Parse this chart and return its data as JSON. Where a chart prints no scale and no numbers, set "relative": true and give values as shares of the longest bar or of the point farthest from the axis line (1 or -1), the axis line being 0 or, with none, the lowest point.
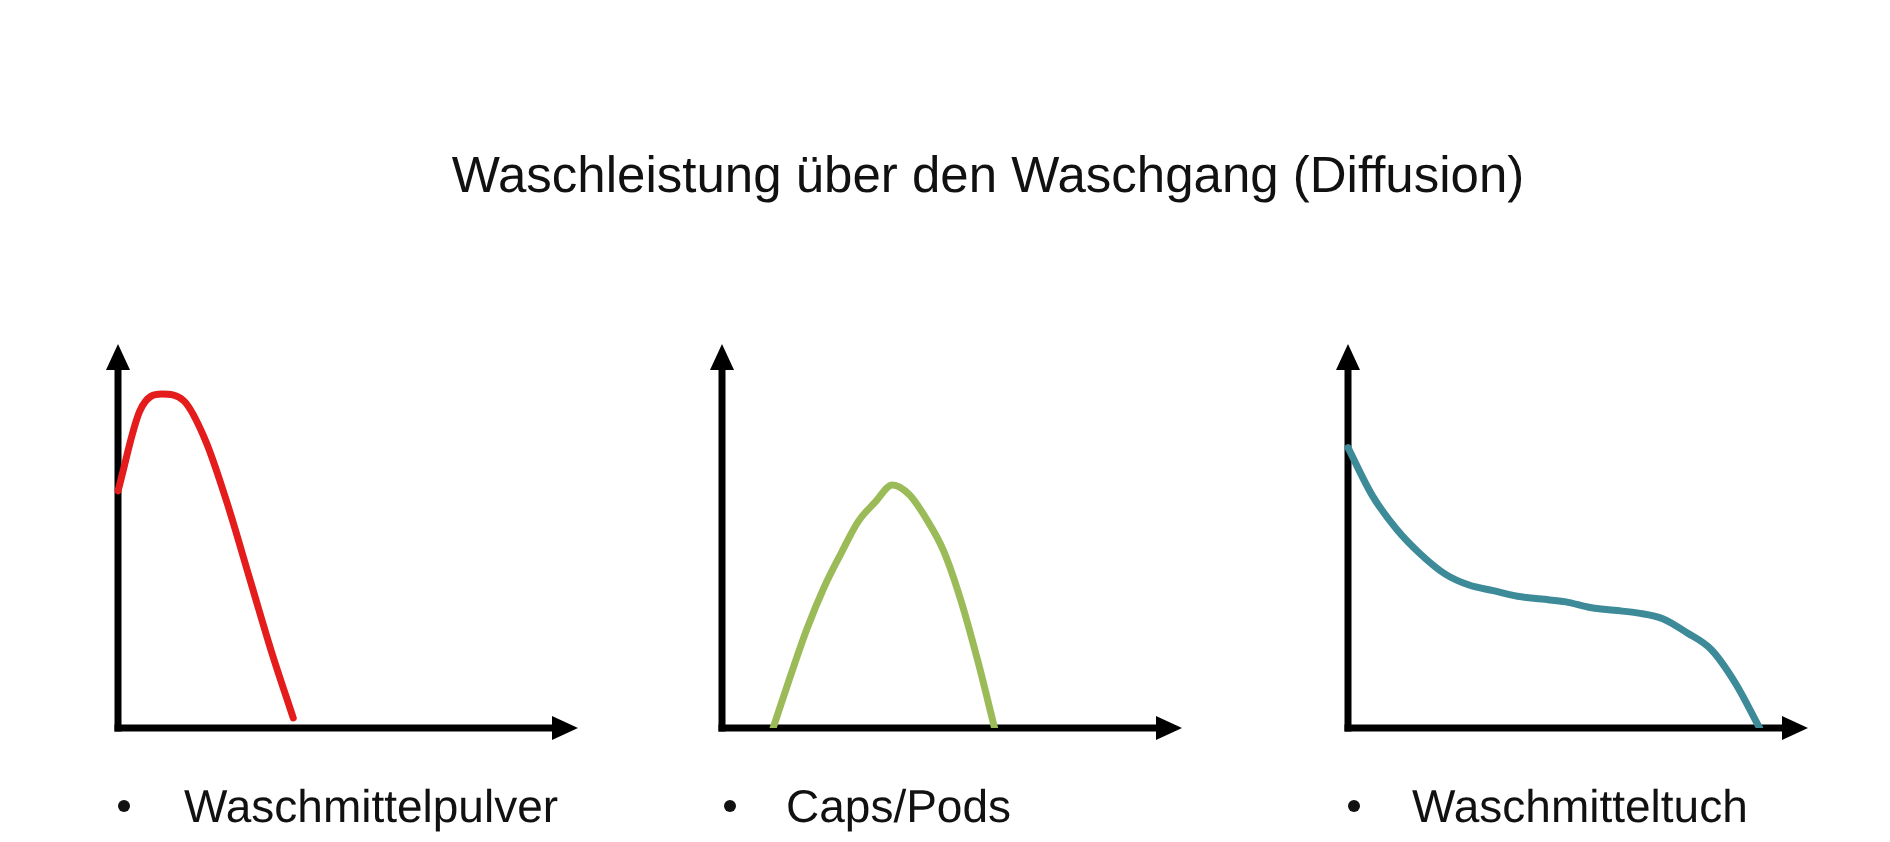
{
  "chart_data": [
    {
      "type": "line",
      "xlabel": "Waschmittelpulver",
      "relative": true,
      "categories": [
        null,
        null,
        null,
        null,
        null,
        null,
        null,
        null,
        null,
        null,
        null,
        null,
        null,
        null,
        null,
        null,
        null,
        null,
        null,
        null,
        null,
        null
      ],
      "series": [
        {
          "color": "#e41c1c",
          "values": [
            0.71,
            0.95,
            1,
            0.98,
            0.86,
            0.67,
            0.45,
            0.23,
            0.03,
            null,
            null,
            null,
            null,
            null,
            null,
            null,
            null,
            null,
            null,
            null,
            null,
            null
          ]
        }
      ]
    },
    {
      "type": "line",
      "title": "Waschleistung über den Waschgang (Diffusion)",
      "xlabel": "Caps/Pods",
      "relative": true,
      "categories": [
        null,
        null,
        null,
        null,
        null,
        null,
        null,
        null,
        null,
        null,
        null,
        null,
        null,
        null,
        null,
        null,
        null,
        null,
        null,
        null,
        null,
        null,
        null,
        null,
        null,
        null,
        null,
        null
      ],
      "series": [
        {
          "color": "#9bbb59",
          "values": [
            null,
            null,
            null,
            0,
            0.21,
            0.41,
            0.58,
            0.72,
            0.85,
            0.93,
            1,
            0.96,
            0.86,
            0.73,
            0.53,
            0.28,
            0,
            null,
            null,
            null,
            null,
            null,
            null,
            null,
            null,
            null,
            null,
            null
          ]
        }
      ]
    },
    {
      "type": "line",
      "xlabel": "Waschmitteltuch",
      "relative": true,
      "categories": [
        null,
        null,
        null,
        null,
        null,
        null,
        null,
        null,
        null,
        null,
        null,
        null,
        null,
        null,
        null,
        null,
        null,
        null,
        null,
        null
      ],
      "series": [
        {
          "color": "#3d8a99",
          "values": [
            1,
            0.83,
            0.71,
            0.62,
            0.55,
            0.51,
            0.49,
            0.47,
            0.46,
            0.45,
            0.43,
            0.42,
            0.41,
            0.39,
            0.34,
            0.28,
            0.16,
            0,
            null,
            null
          ]
        }
      ]
    }
  ]
}
